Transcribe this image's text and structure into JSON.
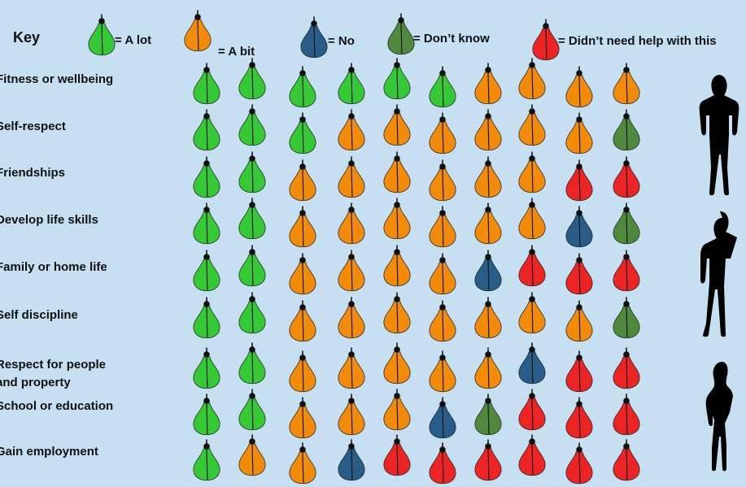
{
  "key": {
    "title": "Key",
    "items": [
      {
        "label": "= A lot",
        "color": "#35c935"
      },
      {
        "label": "= A bit",
        "color": "#f28a0a"
      },
      {
        "label": "= No",
        "color": "#275d88"
      },
      {
        "label": "= Don’t know",
        "color": "#4f8a3c"
      },
      {
        "label": "= Didn’t need help with this",
        "color": "#ec2424"
      }
    ]
  },
  "rows": [
    {
      "label": [
        "Fitness or wellbeing"
      ],
      "counts": [
        6,
        4,
        0,
        0,
        0
      ]
    },
    {
      "label": [
        "Self-respect"
      ],
      "counts": [
        3,
        6,
        0,
        1,
        0
      ]
    },
    {
      "label": [
        "Friendships"
      ],
      "counts": [
        2,
        6,
        0,
        0,
        2
      ]
    },
    {
      "label": [
        "Develop life skills"
      ],
      "counts": [
        2,
        6,
        1,
        1,
        0
      ]
    },
    {
      "label": [
        "Family or home life"
      ],
      "counts": [
        2,
        4,
        1,
        0,
        3
      ]
    },
    {
      "label": [
        "Self discipline"
      ],
      "counts": [
        2,
        7,
        0,
        1,
        0
      ]
    },
    {
      "label": [
        "Respect for people",
        "and property"
      ],
      "counts": [
        2,
        5,
        1,
        0,
        2
      ]
    },
    {
      "label": [
        "School or education"
      ],
      "counts": [
        2,
        3,
        1,
        1,
        3
      ]
    },
    {
      "label": [
        "Gain employment"
      ],
      "counts": [
        1,
        2,
        1,
        0,
        6
      ]
    }
  ]
}
